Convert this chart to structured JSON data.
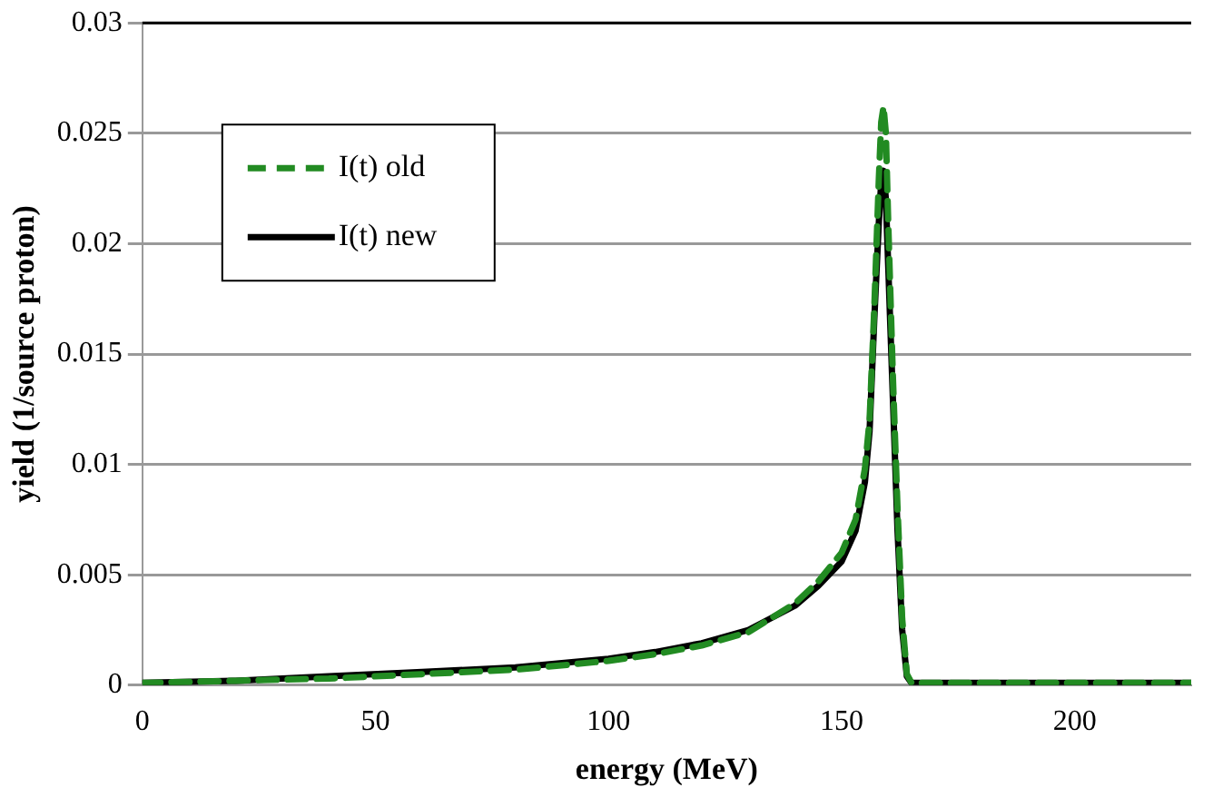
{
  "chart_data": {
    "type": "line",
    "xlabel": "energy (MeV)",
    "ylabel": "yield (1/source proton)",
    "xlim": [
      0,
      225
    ],
    "xticks": [
      0,
      50,
      100,
      150,
      200
    ],
    "ylim": [
      0,
      0.03
    ],
    "yticks": [
      0,
      0.005,
      0.01,
      0.015,
      0.02,
      0.025,
      0.03
    ],
    "grid": "y",
    "legend": "top left",
    "marker": "none",
    "series": [
      {
        "name": "I(t) old",
        "color": "#228b22",
        "line_style": "dashed",
        "x": [
          0,
          20,
          40,
          60,
          80,
          100,
          110,
          120,
          130,
          140,
          145,
          150,
          153,
          155,
          156,
          157,
          158,
          158.5,
          159,
          159.5,
          160,
          161,
          162,
          163,
          164,
          165,
          170,
          200,
          225
        ],
        "values": [
          0.0001,
          0.0002,
          0.0003,
          0.0005,
          0.0007,
          0.0011,
          0.0014,
          0.0018,
          0.0024,
          0.0037,
          0.0047,
          0.006,
          0.0075,
          0.0098,
          0.012,
          0.017,
          0.023,
          0.0255,
          0.0262,
          0.025,
          0.021,
          0.014,
          0.008,
          0.003,
          0.0005,
          0.0001,
          0.0001,
          0.0001,
          0.0001
        ]
      },
      {
        "name": "I(t) new",
        "color": "#000000",
        "line_style": "solid",
        "x": [
          0,
          20,
          40,
          60,
          80,
          100,
          110,
          120,
          130,
          140,
          145,
          150,
          153,
          155,
          156,
          157,
          158,
          158.5,
          159,
          159.5,
          160,
          161,
          162,
          163,
          164,
          165,
          170,
          200,
          225
        ],
        "values": [
          0.0001,
          0.0002,
          0.0004,
          0.0006,
          0.0008,
          0.0012,
          0.0015,
          0.0019,
          0.0025,
          0.0036,
          0.0045,
          0.0056,
          0.007,
          0.0092,
          0.0115,
          0.0165,
          0.021,
          0.0228,
          0.0233,
          0.022,
          0.019,
          0.013,
          0.007,
          0.0025,
          0.0004,
          0.0001,
          0.0001,
          0.0001,
          0.0001
        ]
      }
    ]
  }
}
